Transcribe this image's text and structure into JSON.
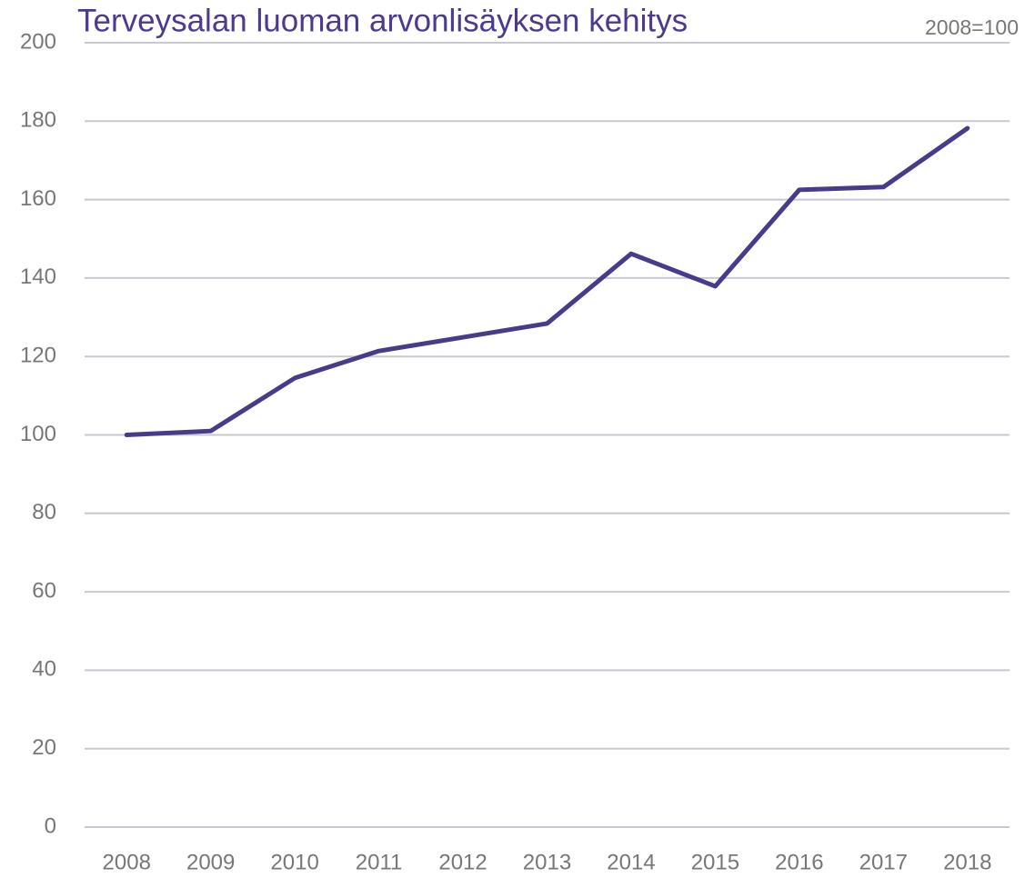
{
  "chart_data": {
    "type": "line",
    "title": "Terveysalan luoman arvonlisäyksen kehitys",
    "subtitle": "2008=100",
    "categories": [
      "2008",
      "2009",
      "2010",
      "2011",
      "2012",
      "2013",
      "2014",
      "2015",
      "2016",
      "2017",
      "2018"
    ],
    "series": [
      {
        "color": "#4a3a8c",
        "values": [
          100,
          101,
          114.5,
          121.4,
          124.9,
          128.4,
          146.2,
          137.9,
          162.5,
          163.2,
          178.2
        ]
      }
    ],
    "ylim": [
      0,
      200
    ],
    "yticks": [
      0,
      20,
      40,
      60,
      80,
      100,
      120,
      140,
      160,
      180,
      200
    ],
    "grid": true
  }
}
